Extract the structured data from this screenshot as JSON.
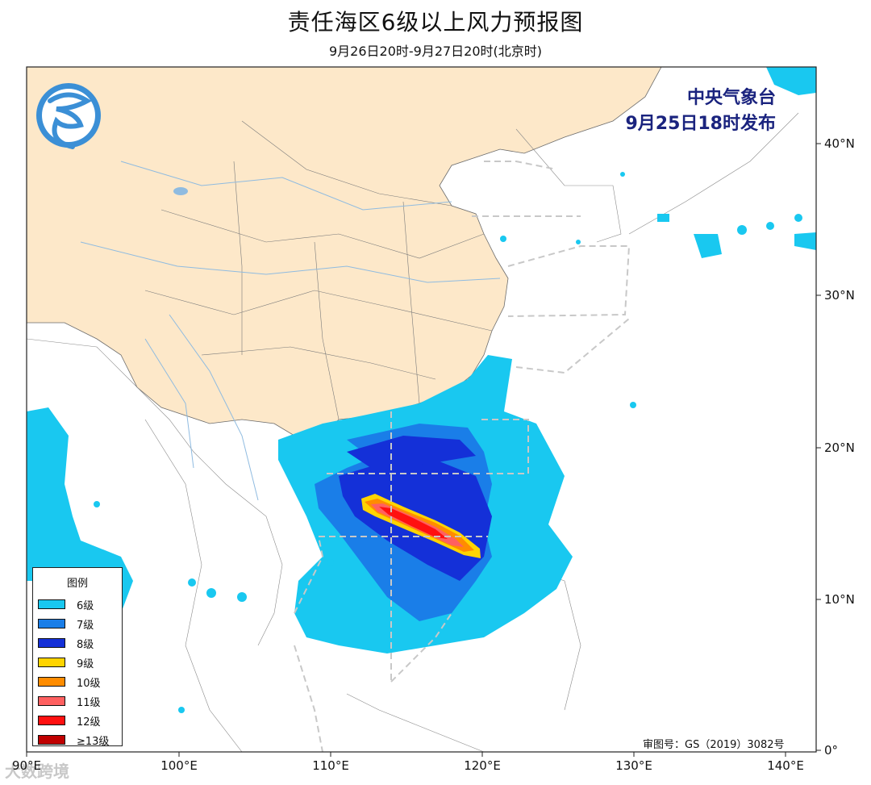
{
  "header": {
    "title": "责任海区6级以上风力预报图",
    "subtitle": "9月26日20时-9月27日20时(北京时)"
  },
  "publisher": {
    "agency": "中央气象台",
    "issued": "9月25日18时发布"
  },
  "legend": {
    "title": "图例",
    "items": [
      {
        "label": "6级",
        "color": "#19c8f0"
      },
      {
        "label": "7级",
        "color": "#1a7ee8"
      },
      {
        "label": "8级",
        "color": "#1430d8"
      },
      {
        "label": "9级",
        "color": "#ffd400"
      },
      {
        "label": "10级",
        "color": "#ff8c00"
      },
      {
        "label": "11级",
        "color": "#ff6060"
      },
      {
        "label": "12级",
        "color": "#ff1010"
      },
      {
        "label": "≥13级",
        "color": "#c00000"
      }
    ]
  },
  "axes": {
    "x_ticks": [
      "90°E",
      "100°E",
      "110°E",
      "120°E",
      "130°E",
      "140°E"
    ],
    "y_ticks": [
      "40°N",
      "30°N",
      "20°N",
      "10°N",
      "0°"
    ]
  },
  "review_number": "审图号：GS（2019）3082号",
  "watermark": "大数跨境",
  "colors": {
    "land_china": "#fde8c9",
    "ocean": "#ffffff",
    "boundary": "#c8c8c8"
  }
}
